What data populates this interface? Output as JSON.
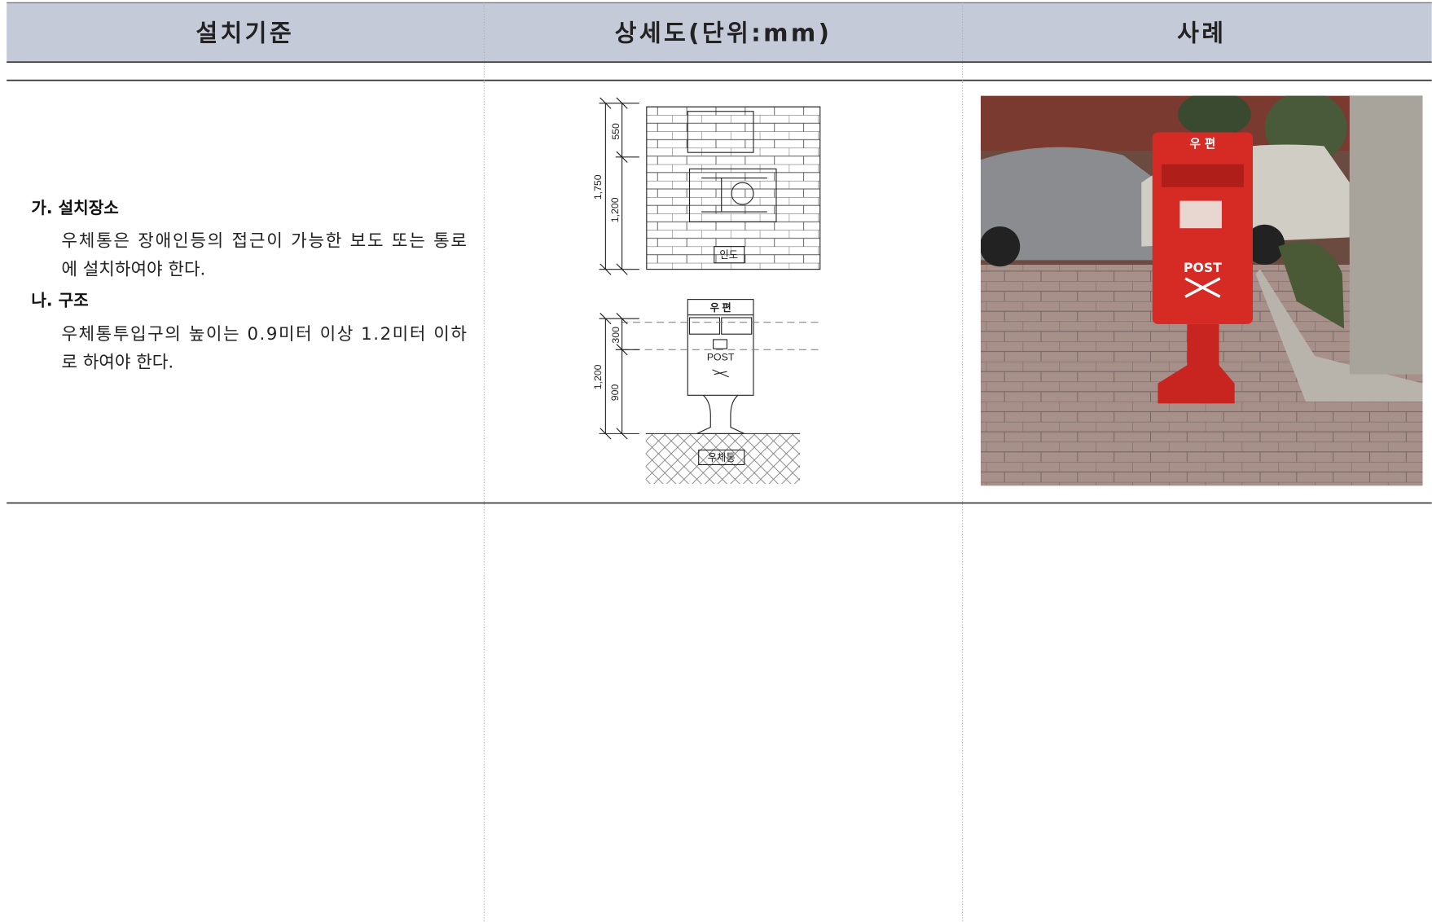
{
  "header": {
    "columns": [
      "설치기준",
      "상세도(단위:mm)",
      "사례"
    ]
  },
  "criteria": {
    "sections": [
      {
        "heading": "가. 설치장소",
        "lines": [
          "우체통은 장애인등의 접근이 가능한 보도 또는 통로",
          "에 설치하여야 한다."
        ]
      },
      {
        "heading": "나. 구조",
        "lines": [
          "우체통투입구의 높이는 0.9미터 이상 1.2미터 이하",
          "로 하여야 한다."
        ]
      }
    ]
  },
  "diagram": {
    "plan": {
      "dims": [
        "550",
        "1,750",
        "1,200"
      ],
      "label": "인도"
    },
    "elevation": {
      "box_title": "우 편",
      "box_text": "POST",
      "dims": [
        "300",
        "1,200",
        "900"
      ],
      "label": "우체통"
    }
  },
  "photo": {
    "box_title": "우 편",
    "box_text": "POST"
  }
}
